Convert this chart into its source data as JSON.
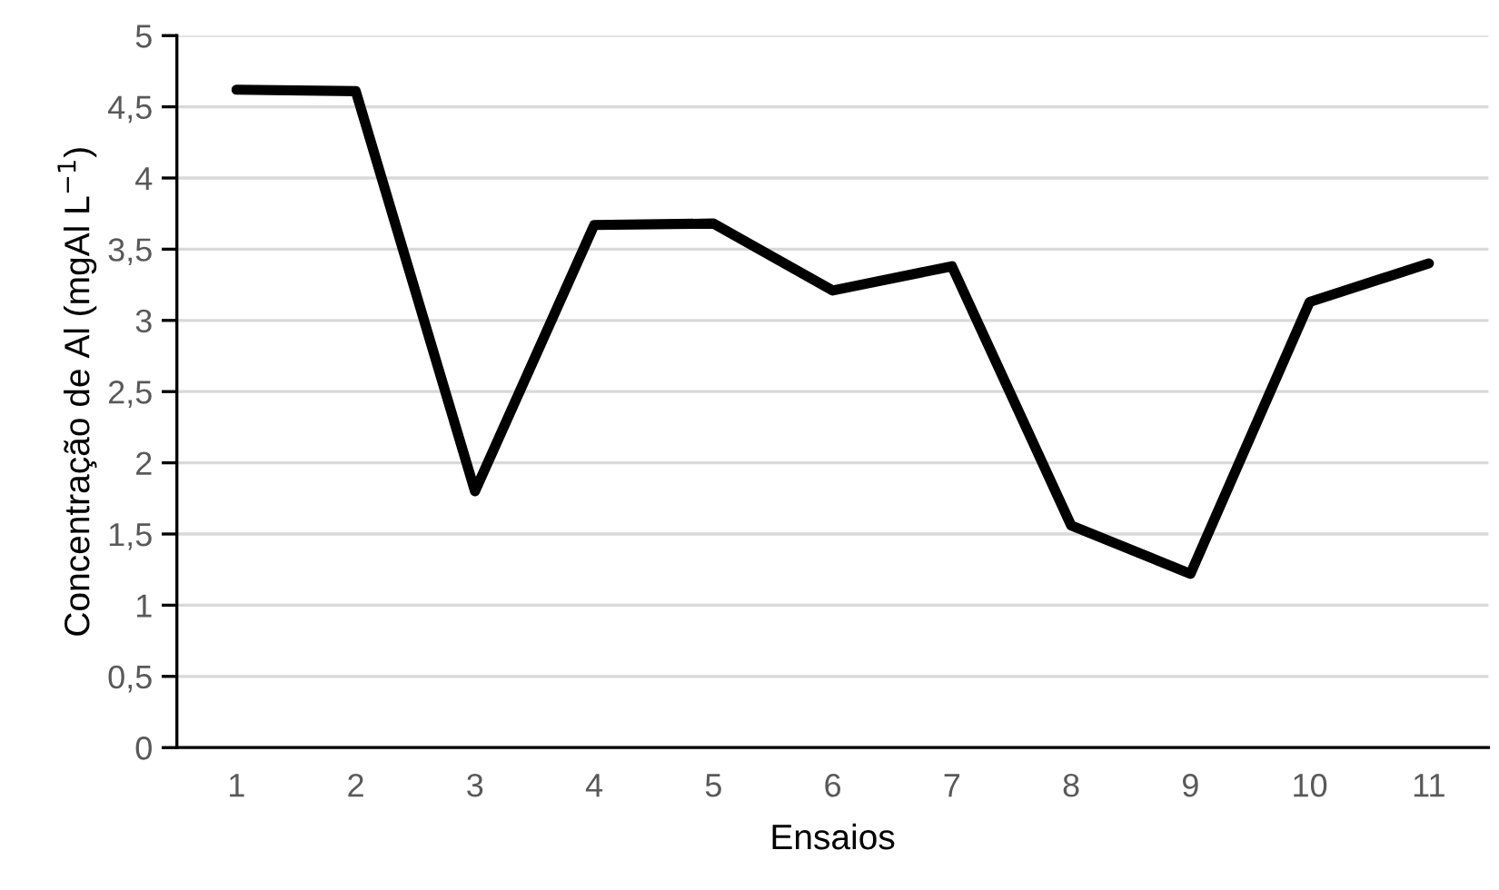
{
  "chart_data": {
    "type": "line",
    "xlabel": "Ensaios",
    "ylabel": "Concentração de Al (mgAl L$^{−1}$)",
    "categories": [
      "1",
      "2",
      "3",
      "4",
      "5",
      "6",
      "7",
      "8",
      "9",
      "10",
      "11"
    ],
    "series": [
      {
        "color": "#000000",
        "values": [
          4.62,
          4.61,
          1.8,
          3.67,
          3.68,
          3.21,
          3.38,
          1.56,
          1.22,
          3.13,
          3.4
        ]
      }
    ],
    "ylim": [
      0,
      5
    ],
    "yticks": [
      0,
      {
        "value": 0.5,
        "label": "0,5"
      },
      1,
      {
        "value": 1.5,
        "label": "1,5"
      },
      2,
      {
        "value": 2.5,
        "label": "2,5"
      },
      3,
      {
        "value": 3.5,
        "label": "3,5"
      },
      4,
      {
        "value": 4.5,
        "label": "4,5"
      },
      5
    ],
    "grid": "y",
    "marker": "none",
    "line_style": "solid"
  }
}
